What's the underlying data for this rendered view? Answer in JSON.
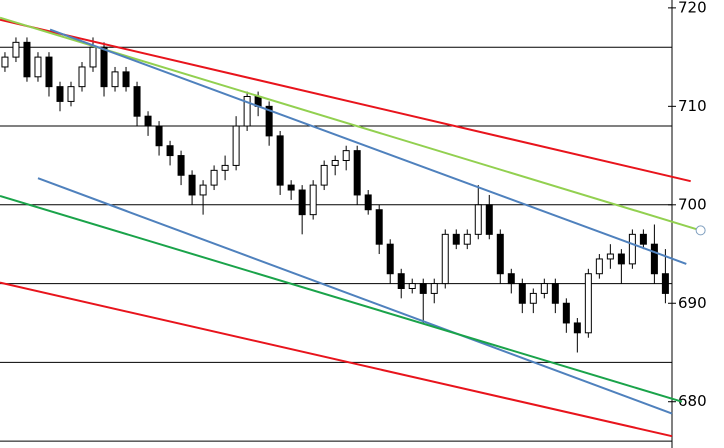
{
  "chart_data": {
    "type": "candlestick",
    "open": [
      714,
      715,
      716.5,
      713,
      715,
      712,
      710.5,
      712,
      714,
      716,
      712,
      713.5,
      712,
      709,
      708,
      706,
      705,
      703,
      701,
      702,
      703.5,
      704,
      708,
      711,
      710,
      707,
      702,
      701.5,
      699,
      702,
      704,
      704.5,
      705.5,
      701,
      699.5,
      696,
      693,
      691.5,
      692,
      691,
      692,
      697,
      696,
      697,
      700,
      697,
      693,
      692,
      690,
      691,
      692,
      690,
      688,
      687,
      693,
      694.5,
      695,
      694,
      697,
      696,
      693
    ],
    "high": [
      715.5,
      717,
      717,
      715.5,
      715.5,
      712.5,
      712.5,
      714.5,
      717,
      716.5,
      714,
      714,
      712.5,
      709.5,
      708.5,
      706.5,
      705.5,
      703.5,
      702.5,
      704,
      705,
      709,
      711.5,
      711.5,
      710.5,
      707.5,
      702.5,
      702,
      702.5,
      704.5,
      705,
      706,
      706,
      701.5,
      700,
      696.5,
      693.5,
      692.5,
      692.5,
      692.5,
      697.5,
      697.5,
      697.5,
      702,
      701,
      697.5,
      693.5,
      692.5,
      691.5,
      692.5,
      692.5,
      690.5,
      688.5,
      693.5,
      695,
      696,
      695.5,
      697.5,
      697.5,
      698,
      695.5
    ],
    "low": [
      713.5,
      714.5,
      712.5,
      712.5,
      711,
      709.5,
      710,
      711.5,
      713.5,
      711,
      711.5,
      711.5,
      708,
      707,
      705,
      704,
      702,
      700,
      699,
      701.5,
      702.5,
      703.5,
      707.5,
      709,
      706,
      701,
      700.5,
      697,
      698.5,
      701.5,
      703,
      703.5,
      700,
      699,
      695,
      692,
      690.5,
      691,
      688,
      690,
      691.5,
      695.5,
      695.5,
      696.5,
      696.5,
      692,
      691,
      689,
      689,
      690.5,
      689,
      687,
      685,
      686.5,
      692.5,
      693.5,
      692,
      693.5,
      695.5,
      692,
      690
    ],
    "close": [
      715,
      716.5,
      713,
      715,
      712,
      710.5,
      712,
      714,
      716,
      712,
      713.5,
      712,
      709,
      708,
      706,
      705,
      703,
      701,
      702,
      703.5,
      704,
      708,
      711,
      710,
      707,
      702,
      701.5,
      699,
      702,
      704,
      704.5,
      705.5,
      701,
      699.5,
      696,
      693,
      691.5,
      692,
      691,
      692,
      697,
      696,
      697,
      700,
      697,
      693,
      692,
      690,
      691,
      692,
      690,
      688,
      687,
      693,
      694.5,
      695,
      694,
      697,
      696,
      693,
      691
    ],
    "xlim": [
      -0.45,
      60.6
    ],
    "ylim": [
      675.3,
      720.8
    ],
    "yticks": [
      680,
      690,
      700,
      710,
      720
    ],
    "levels": [
      716,
      708,
      700,
      692,
      684,
      676
    ],
    "trendlines": [
      {
        "color": "#e8141c",
        "x": [
          -0.45,
          62.3
        ],
        "y": [
          718.8,
          702.4
        ]
      },
      {
        "color": "#e8141c",
        "x": [
          -0.45,
          60.6
        ],
        "y": [
          692.1,
          676.5
        ]
      },
      {
        "color": "#92d050",
        "x": [
          -0.45,
          63.2
        ],
        "y": [
          719,
          697.4
        ],
        "marker": true
      },
      {
        "color": "#4f81bd",
        "x": [
          4.1,
          61.9
        ],
        "y": [
          717.8,
          694.0
        ]
      },
      {
        "color": "#4f81bd",
        "x": [
          3,
          60.6
        ],
        "y": [
          702.7,
          678.8
        ]
      },
      {
        "color": "#1aa34a",
        "x": [
          -0.45,
          61.5
        ],
        "y": [
          700.9,
          680
        ]
      }
    ]
  }
}
